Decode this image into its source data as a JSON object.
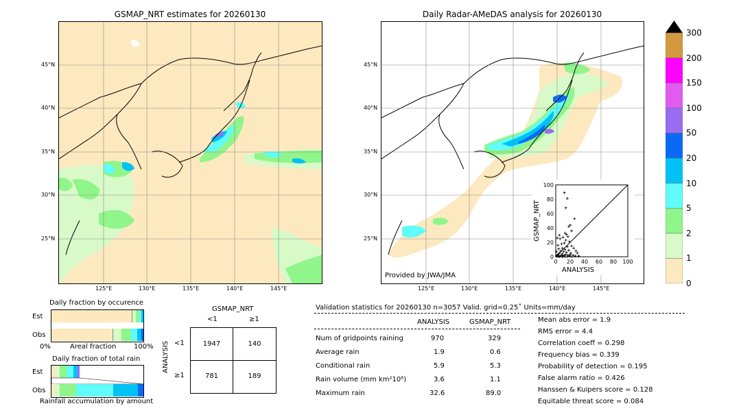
{
  "left_map": {
    "title": "GSMAP_NRT estimates for 20260130",
    "lat_ticks": [
      "45°N",
      "40°N",
      "35°N",
      "30°N",
      "25°N"
    ],
    "lon_ticks": [
      "125°E",
      "130°E",
      "135°E",
      "140°E",
      "145°E"
    ]
  },
  "right_map": {
    "title": "Daily Radar-AMeDAS analysis for 20260130",
    "lat_ticks": [
      "45°N",
      "40°N",
      "35°N",
      "30°N",
      "25°N"
    ],
    "lon_ticks": [
      "125°E",
      "130°E",
      "135°E",
      "140°E",
      "145°E"
    ],
    "credit": "Provided by JWA/JMA"
  },
  "colorbar": {
    "labels": [
      "300",
      "200",
      "150",
      "100",
      "50",
      "20",
      "10",
      "5",
      "2",
      "1",
      "0"
    ],
    "colors": [
      "#d29a3e",
      "#ff00ff",
      "#e05cf0",
      "#9a6cf2",
      "#0a6af5",
      "#00c2f5",
      "#5ffcf9",
      "#90f58a",
      "#d7fac8",
      "#fde9bf"
    ]
  },
  "fraction_occurrence": {
    "title": "Daily fraction by occurence",
    "rows": [
      "Est",
      "Obs"
    ],
    "axis_left": "0%",
    "axis_mid": "Areal fraction",
    "axis_right": "100%"
  },
  "fraction_rain": {
    "title": "Daily fraction of total rain",
    "rows": [
      "Est",
      "Obs"
    ],
    "footer": "Rainfall accumulation by amount"
  },
  "contingency": {
    "header": "GSMAP_NRT",
    "col_labels": [
      "<1",
      "≥1"
    ],
    "row_axis": "ANALYSIS",
    "row_labels": [
      "<1",
      "≥1"
    ],
    "cells": [
      [
        "1947",
        "140"
      ],
      [
        "781",
        "189"
      ]
    ]
  },
  "validation": {
    "title": "Validation statistics for 20260130  n=3057 Valid. grid=0.25˚ Units=mm/day",
    "col_headers": [
      "ANALYSIS",
      "GSMAP_NRT"
    ],
    "rows": [
      {
        "label": "Num of gridpoints raining",
        "analysis": "970",
        "gsmap": "329"
      },
      {
        "label": "Average rain",
        "analysis": "1.9",
        "gsmap": "0.6"
      },
      {
        "label": "Conditional rain",
        "analysis": "5.9",
        "gsmap": "5.3"
      },
      {
        "label": "Rain volume (mm km²10⁶)",
        "analysis": "3.6",
        "gsmap": "1.1"
      },
      {
        "label": "Maximum rain",
        "analysis": "32.6",
        "gsmap": "89.0"
      }
    ],
    "scores": [
      "Mean abs error =    1.9",
      "RMS error =    4.4",
      "Correlation coeff =  0.298",
      "Frequency bias =  0.339",
      "Probability of detection =  0.195",
      "False alarm ratio =  0.426",
      "Hanssen & Kuipers score =  0.128",
      "Equitable threat score =  0.084"
    ]
  },
  "chart_data": {
    "type": "scatter",
    "xlabel": "ANALYSIS",
    "ylabel": "GSMAP_NRT",
    "xlim": [
      0,
      100
    ],
    "ylim": [
      0,
      100
    ],
    "x_ticks": [
      "0",
      "20",
      "40",
      "60",
      "80",
      "100"
    ],
    "y_ticks": [
      "0",
      "20",
      "40",
      "60",
      "80",
      "100"
    ],
    "points": [
      [
        12,
        89
      ],
      [
        16,
        81
      ],
      [
        14,
        68
      ],
      [
        26,
        53
      ],
      [
        20,
        44
      ],
      [
        18,
        42
      ],
      [
        22,
        36
      ],
      [
        13,
        33
      ],
      [
        15,
        31
      ],
      [
        5,
        30
      ],
      [
        17,
        28
      ],
      [
        10,
        27
      ],
      [
        2,
        26
      ],
      [
        6,
        25
      ],
      [
        14,
        23
      ],
      [
        19,
        21
      ],
      [
        12,
        19
      ],
      [
        8,
        18
      ],
      [
        3,
        16
      ],
      [
        22,
        15
      ],
      [
        16,
        14
      ],
      [
        25,
        12
      ],
      [
        9,
        12
      ],
      [
        4,
        11
      ],
      [
        13,
        10
      ],
      [
        18,
        9
      ],
      [
        28,
        8
      ],
      [
        7,
        8
      ],
      [
        1,
        7
      ],
      [
        11,
        7
      ],
      [
        15,
        6
      ],
      [
        21,
        5
      ],
      [
        30,
        5
      ],
      [
        5,
        5
      ],
      [
        9,
        4
      ],
      [
        3,
        3
      ],
      [
        14,
        3
      ],
      [
        20,
        3
      ],
      [
        2,
        2
      ],
      [
        8,
        2
      ],
      [
        12,
        2
      ],
      [
        17,
        2
      ],
      [
        24,
        2
      ],
      [
        1,
        1
      ],
      [
        4,
        1
      ],
      [
        6,
        1
      ],
      [
        10,
        1
      ],
      [
        19,
        1
      ],
      [
        27,
        1
      ],
      [
        32,
        1
      ],
      [
        2,
        0
      ],
      [
        5,
        0
      ],
      [
        9,
        0
      ],
      [
        13,
        0
      ],
      [
        16,
        0
      ],
      [
        22,
        0
      ]
    ]
  }
}
